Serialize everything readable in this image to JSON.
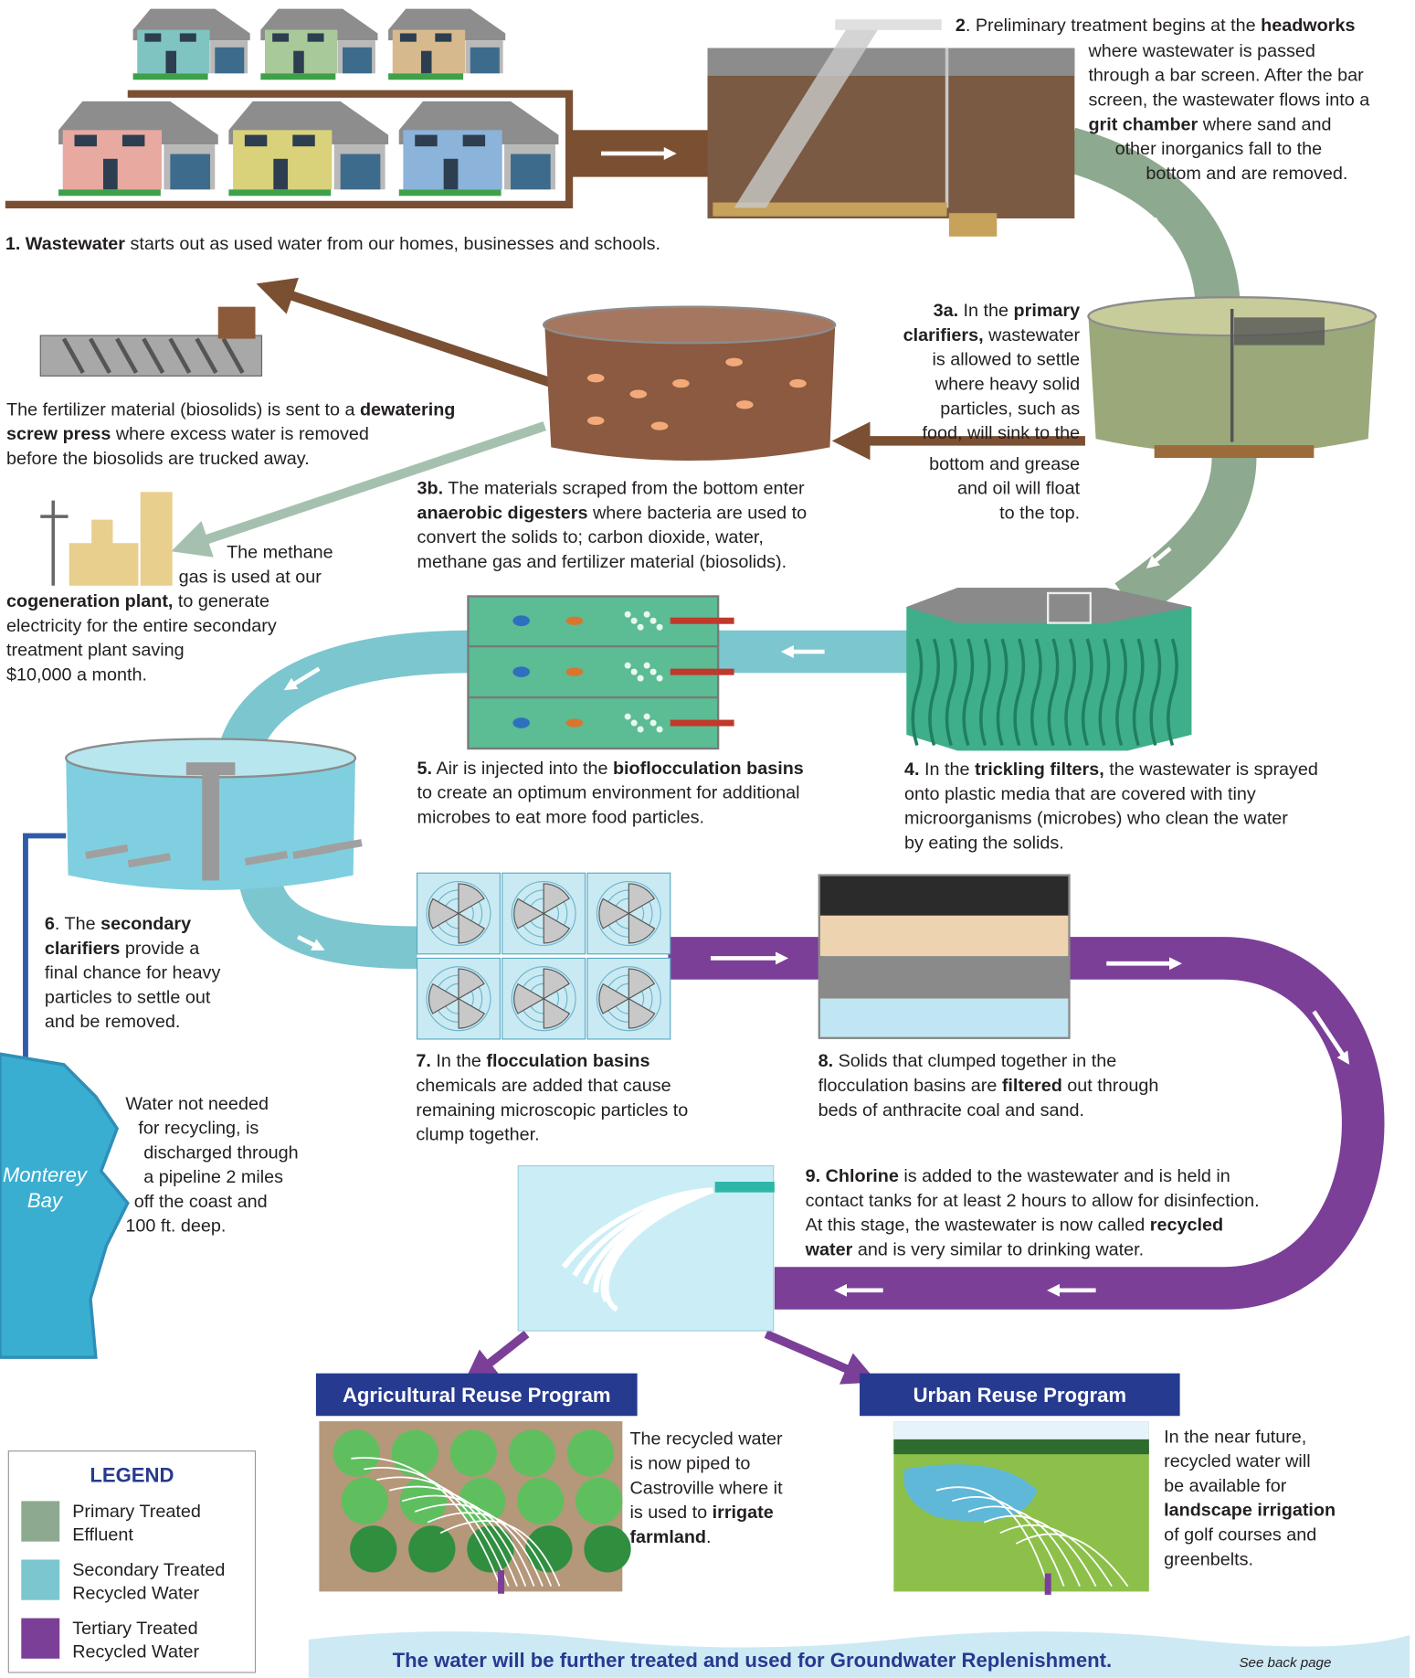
{
  "blocks": [
    {
      "lines": [
        [
          {
            "text": "1. Wastewater",
            "bold": true
          },
          " starts out as used water from our homes, businesses and schools."
        ]
      ]
    },
    {
      "lines": [
        [
          {
            "text": "2",
            "bold": true
          },
          ". Preliminary treatment begins at the ",
          {
            "text": "headworks",
            "bold": true
          }
        ],
        [
          "where wastewater is passed"
        ],
        [
          "through a bar screen. After the bar"
        ],
        [
          "screen, the wastewater flows into a"
        ],
        [
          {
            "text": "grit chamber",
            "bold": true
          },
          " where sand and"
        ],
        [
          "other inorganics fall to the"
        ],
        [
          "bottom and are removed."
        ]
      ]
    },
    {
      "lines": [
        [
          {
            "text": "3a.",
            "bold": true
          },
          " In the ",
          {
            "text": "primary",
            "bold": true
          }
        ],
        [
          {
            "text": "clarifiers,",
            "bold": true
          },
          " wastewater"
        ],
        [
          "is allowed to settle"
        ],
        [
          "where heavy solid"
        ],
        [
          "particles, such as"
        ],
        [
          "food, will sink to the"
        ],
        [
          "bottom and grease"
        ],
        [
          "and oil will float"
        ],
        [
          "to the top."
        ]
      ]
    },
    {
      "lines": [
        [
          {
            "text": "3b.",
            "bold": true
          },
          " The materials scraped from the bottom enter"
        ],
        [
          {
            "text": "anaerobic digesters",
            "bold": true
          },
          " where bacteria are used to"
        ],
        [
          "convert the solids to; carbon dioxide, water,"
        ],
        [
          "methane gas and fertilizer material (biosolids)."
        ]
      ]
    },
    {
      "lines": [
        [
          "The fertilizer material (biosolids) is sent to a ",
          {
            "text": "dewatering",
            "bold": true
          }
        ],
        [
          {
            "text": "screw press",
            "bold": true
          },
          " where excess water is removed"
        ],
        [
          "before the biosolids are trucked away."
        ]
      ]
    },
    {
      "lines": [
        [
          "The methane"
        ],
        [
          "gas is used at our"
        ],
        [
          {
            "text": "cogeneration plant,",
            "bold": true
          },
          " to generate"
        ],
        [
          "electricity for the entire secondary"
        ],
        [
          "treatment plant saving"
        ],
        [
          "$10,000 a month."
        ]
      ]
    },
    {
      "lines": [
        [
          {
            "text": "5.",
            "bold": true
          },
          " Air is injected into the ",
          {
            "text": "bioflocculation basins",
            "bold": true
          }
        ],
        [
          "to create an optimum environment for additional"
        ],
        [
          "microbes to eat more food particles."
        ]
      ]
    },
    {
      "lines": [
        [
          {
            "text": "4.",
            "bold": true
          },
          " In the ",
          {
            "text": "trickling filters,",
            "bold": true
          },
          " the wastewater is sprayed"
        ],
        [
          "onto plastic media that are covered with tiny"
        ],
        [
          "microorganisms (microbes) who clean the water"
        ],
        [
          "by eating the solids."
        ]
      ]
    },
    {
      "lines": [
        [
          {
            "text": "6",
            "bold": true
          },
          ". The ",
          {
            "text": "secondary",
            "bold": true
          }
        ],
        [
          {
            "text": "clarifiers",
            "bold": true
          },
          " provide a"
        ],
        [
          "final chance for heavy"
        ],
        [
          "particles to settle out"
        ],
        [
          "and be removed."
        ]
      ]
    },
    {
      "lines": [
        [
          {
            "text": "7.",
            "bold": true
          },
          " In the ",
          {
            "text": "flocculation basins",
            "bold": true
          }
        ],
        [
          "chemicals are added that cause"
        ],
        [
          "remaining microscopic particles to"
        ],
        [
          "clump together."
        ]
      ]
    },
    {
      "lines": [
        [
          {
            "text": "8.",
            "bold": true
          },
          " Solids that clumped together in the"
        ],
        [
          "flocculation basins are ",
          {
            "text": "filtered",
            "bold": true
          },
          " out through"
        ],
        [
          "beds of anthracite coal and sand."
        ]
      ]
    },
    {
      "lines": [
        [
          "Water not needed"
        ],
        [
          "for recycling, is"
        ],
        [
          "discharged through"
        ],
        [
          "a pipeline 2 miles"
        ],
        [
          "off the coast and"
        ],
        [
          "100 ft. deep."
        ]
      ]
    },
    {
      "lines": [
        [
          {
            "text": "9. Chlorine",
            "bold": true
          },
          " is added to the wastewater and is held in"
        ],
        [
          "contact tanks for at least 2 hours to allow for disinfection."
        ],
        [
          "At this stage, the wastewater is now called ",
          {
            "text": "recycled",
            "bold": true
          }
        ],
        [
          {
            "text": "water",
            "bold": true
          },
          " and is very similar to drinking water."
        ]
      ]
    },
    {
      "lines": [
        [
          "The recycled water"
        ],
        [
          "is now piped to"
        ],
        [
          "Castroville where it"
        ],
        [
          "is used to ",
          {
            "text": "irrigate",
            "bold": true
          }
        ],
        [
          {
            "text": "farmland",
            "bold": true
          },
          "."
        ]
      ]
    },
    {
      "lines": [
        [
          "In the near future,"
        ],
        [
          "recycled water will"
        ],
        [
          "be available for"
        ],
        [
          {
            "text": "landscape irrigation",
            "bold": true
          }
        ],
        [
          "of golf courses and"
        ],
        [
          "greenbelts."
        ]
      ]
    }
  ],
  "monterey_bay": [
    "Monterey",
    "Bay"
  ],
  "banners": {
    "agricultural": "Agricultural Reuse Program",
    "urban": "Urban Reuse Program"
  },
  "legend": {
    "title": "LEGEND",
    "items": [
      {
        "lines": [
          "Primary Treated",
          "Effluent"
        ],
        "color": "#8da98f"
      },
      {
        "lines": [
          "Secondary Treated",
          "Recycled Water"
        ],
        "color": "#7cc6cf"
      },
      {
        "lines": [
          "Tertiary Treated",
          "Recycled Water"
        ],
        "color": "#7b3f98"
      }
    ]
  },
  "footer": {
    "text": "The water will be further treated and used for Groundwater Replenishment.",
    "see_back": "See back page"
  }
}
